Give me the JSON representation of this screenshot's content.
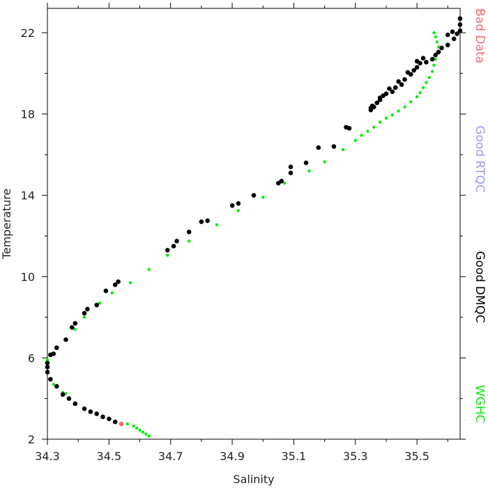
{
  "chart_data": {
    "type": "scatter",
    "xlabel": "Salinity",
    "ylabel": "Temperature",
    "xlim": [
      34.3,
      35.64
    ],
    "ylim": [
      2,
      23.2
    ],
    "xticks": [
      34.3,
      34.5,
      34.7,
      34.9,
      35.1,
      35.3,
      35.5
    ],
    "xtick_labels": [
      "34.3",
      "34.5",
      "34.7",
      "34.9",
      "35.1",
      "35.3",
      "35.5"
    ],
    "yticks": [
      2,
      6,
      10,
      14,
      18,
      22
    ],
    "ytick_labels": [
      "2",
      "6",
      "10",
      "14",
      "18",
      "22"
    ],
    "legend_position": "right-vertical",
    "series": [
      {
        "name": "WGHC",
        "color": "#00ee00",
        "marker_size": "small",
        "points": [
          [
            34.63,
            2.15
          ],
          [
            34.62,
            2.25
          ],
          [
            34.61,
            2.35
          ],
          [
            34.6,
            2.45
          ],
          [
            34.59,
            2.55
          ],
          [
            34.58,
            2.65
          ],
          [
            34.56,
            2.75
          ],
          [
            34.36,
            4.25
          ],
          [
            34.35,
            4.3
          ],
          [
            34.32,
            4.7
          ],
          [
            34.3,
            5.7
          ],
          [
            34.3,
            5.9
          ],
          [
            34.31,
            6.2
          ],
          [
            34.33,
            6.55
          ],
          [
            34.39,
            7.4
          ],
          [
            34.42,
            8.0
          ],
          [
            34.47,
            8.7
          ],
          [
            34.51,
            9.2
          ],
          [
            34.57,
            9.7
          ],
          [
            34.63,
            10.35
          ],
          [
            34.69,
            11.05
          ],
          [
            34.76,
            11.75
          ],
          [
            34.85,
            12.55
          ],
          [
            34.92,
            13.25
          ],
          [
            35.0,
            13.9
          ],
          [
            35.07,
            14.6
          ],
          [
            35.15,
            15.2
          ],
          [
            35.2,
            15.65
          ],
          [
            35.26,
            16.25
          ],
          [
            35.3,
            16.7
          ],
          [
            35.32,
            16.95
          ],
          [
            35.34,
            17.15
          ],
          [
            35.36,
            17.35
          ],
          [
            35.38,
            17.6
          ],
          [
            35.4,
            17.8
          ],
          [
            35.42,
            17.95
          ],
          [
            35.44,
            18.15
          ],
          [
            35.46,
            18.35
          ],
          [
            35.48,
            18.6
          ],
          [
            35.5,
            18.85
          ],
          [
            35.51,
            19.05
          ],
          [
            35.52,
            19.3
          ],
          [
            35.53,
            19.55
          ],
          [
            35.54,
            19.8
          ],
          [
            35.55,
            20.1
          ],
          [
            35.555,
            20.4
          ],
          [
            35.56,
            20.7
          ],
          [
            35.565,
            21.0
          ],
          [
            35.57,
            21.3
          ],
          [
            35.565,
            21.55
          ],
          [
            35.56,
            21.8
          ],
          [
            35.555,
            22.0
          ]
        ]
      },
      {
        "name": "Good DMQC",
        "color": "#000000",
        "marker_size": "large",
        "points": [
          [
            34.52,
            2.85
          ],
          [
            34.5,
            3.0
          ],
          [
            34.48,
            3.1
          ],
          [
            34.46,
            3.25
          ],
          [
            34.44,
            3.35
          ],
          [
            34.42,
            3.5
          ],
          [
            34.39,
            3.75
          ],
          [
            34.37,
            4.0
          ],
          [
            34.35,
            4.2
          ],
          [
            34.33,
            4.6
          ],
          [
            34.31,
            4.95
          ],
          [
            34.3,
            5.3
          ],
          [
            34.3,
            5.55
          ],
          [
            34.3,
            5.75
          ],
          [
            34.31,
            6.15
          ],
          [
            34.32,
            6.2
          ],
          [
            34.33,
            6.5
          ],
          [
            34.36,
            6.9
          ],
          [
            34.38,
            7.5
          ],
          [
            34.39,
            7.7
          ],
          [
            34.42,
            8.2
          ],
          [
            34.43,
            8.4
          ],
          [
            34.46,
            8.6
          ],
          [
            34.49,
            9.3
          ],
          [
            34.52,
            9.6
          ],
          [
            34.53,
            9.75
          ],
          [
            34.69,
            11.3
          ],
          [
            34.71,
            11.5
          ],
          [
            34.72,
            11.75
          ],
          [
            34.76,
            12.2
          ],
          [
            34.8,
            12.7
          ],
          [
            34.82,
            12.75
          ],
          [
            34.9,
            13.5
          ],
          [
            34.92,
            13.6
          ],
          [
            34.97,
            14.0
          ],
          [
            35.05,
            14.6
          ],
          [
            35.06,
            14.7
          ],
          [
            35.09,
            15.1
          ],
          [
            35.09,
            15.4
          ],
          [
            35.14,
            15.6
          ],
          [
            35.18,
            16.35
          ],
          [
            35.23,
            16.4
          ],
          [
            35.27,
            17.35
          ],
          [
            35.28,
            17.3
          ],
          [
            35.35,
            18.2
          ],
          [
            35.36,
            18.35
          ],
          [
            35.37,
            18.55
          ],
          [
            35.38,
            18.7
          ],
          [
            35.39,
            18.9
          ],
          [
            35.4,
            19.0
          ],
          [
            35.42,
            19.1
          ],
          [
            35.43,
            19.3
          ],
          [
            35.45,
            19.45
          ],
          [
            35.46,
            19.7
          ],
          [
            35.48,
            19.95
          ],
          [
            35.49,
            20.15
          ],
          [
            35.5,
            20.3
          ],
          [
            35.51,
            20.5
          ],
          [
            35.53,
            20.55
          ],
          [
            35.55,
            20.7
          ],
          [
            35.56,
            20.9
          ],
          [
            35.57,
            21.05
          ],
          [
            35.58,
            21.25
          ],
          [
            35.6,
            21.4
          ],
          [
            35.62,
            21.7
          ],
          [
            35.63,
            21.95
          ],
          [
            35.64,
            22.1
          ],
          [
            35.64,
            22.4
          ],
          [
            35.64,
            22.7
          ],
          [
            35.615,
            22.05
          ],
          [
            35.6,
            21.9
          ],
          [
            35.52,
            20.75
          ],
          [
            35.5,
            20.6
          ],
          [
            35.47,
            20.05
          ],
          [
            35.44,
            19.6
          ],
          [
            35.41,
            19.25
          ],
          [
            35.38,
            18.8
          ],
          [
            35.355,
            18.4
          ],
          [
            35.35,
            18.3
          ]
        ]
      },
      {
        "name": "Good RTQC",
        "color": "#9999ff",
        "marker_size": "large",
        "points": []
      },
      {
        "name": "Bad Data",
        "color": "#ff6666",
        "marker_size": "large",
        "points": [
          [
            34.54,
            2.75
          ]
        ]
      }
    ],
    "legend": [
      {
        "label": "Bad Data",
        "color": "#ff6666"
      },
      {
        "label": "Good RTQC",
        "color": "#9999ff"
      },
      {
        "label": "Good DMQC",
        "color": "#000000"
      },
      {
        "label": "WGHC",
        "color": "#00ee00"
      }
    ]
  }
}
